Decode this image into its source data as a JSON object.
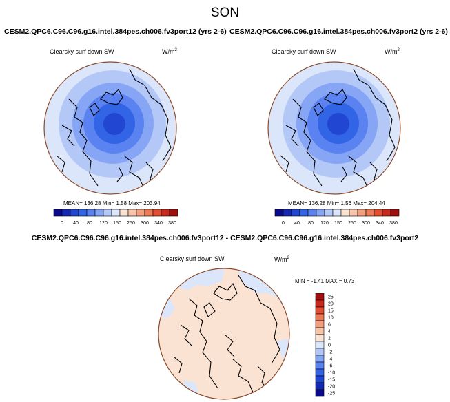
{
  "title": "SON",
  "panels": [
    {
      "case": "CESM2.QPC6.C96.C96.g16.intel.384pes.ch006.fv3port12 (yrs 2-6)",
      "variable": "Clearsky surf down SW",
      "units_base": "W/m",
      "units_exp": "2",
      "stats": "MEAN= 136.28  Min=   1.58  Max= 203.94"
    },
    {
      "case": "CESM2.QPC6.C96.C96.g16.intel.384pes.ch006.fv3port2 (yrs 2-6)",
      "variable": "Clearsky surf down SW",
      "units_base": "W/m",
      "units_exp": "2",
      "stats": "MEAN= 136.28  Min=   1.56  Max= 204.44"
    }
  ],
  "diff": {
    "title": "CESM2.QPC6.C96.C96.g16.intel.384pes.ch006.fv3port12 - CESM2.QPC6.C96.C96.g16.intel.384pes.ch006.fv3port2",
    "variable": "Clearsky surf down SW",
    "units_base": "W/m",
    "units_exp": "2",
    "stats": "MIN =  -1.41 MAX =   0.73"
  },
  "colorbar_main": {
    "colors": [
      "#0a0a8c",
      "#1428b4",
      "#2046d2",
      "#3264e6",
      "#5a82f0",
      "#86a6f5",
      "#b4c8f8",
      "#dce6fa",
      "#fbe3d4",
      "#f8c4aa",
      "#f4a07e",
      "#ee7a56",
      "#e24e32",
      "#c8281e",
      "#a0100e"
    ],
    "tick_labels": [
      "0",
      "40",
      "80",
      "120",
      "150",
      "250",
      "300",
      "340",
      "380"
    ]
  },
  "colorbar_diff": {
    "colors": [
      "#a0100e",
      "#c8281e",
      "#e24e32",
      "#ee7a56",
      "#f4a07e",
      "#f8c4aa",
      "#fbe3d4",
      "#dce6fa",
      "#b4c8f8",
      "#86a6f5",
      "#5a82f0",
      "#3264e6",
      "#2046d2",
      "#1428b4",
      "#0a0a8c"
    ],
    "tick_labels": [
      "25",
      "20",
      "15",
      "10",
      "6",
      "4",
      "2",
      "0",
      "-2",
      "-4",
      "-6",
      "-10",
      "-15",
      "-20",
      "-25"
    ]
  },
  "map_colors": {
    "rings": [
      "#dce6fa",
      "#b4c8f8",
      "#86a6f5",
      "#5a82f0",
      "#3264e6",
      "#2046d2"
    ],
    "diff_warm": "#fbe3d4",
    "diff_cool": "#dce6fa",
    "frame": "#8b4a2a"
  }
}
